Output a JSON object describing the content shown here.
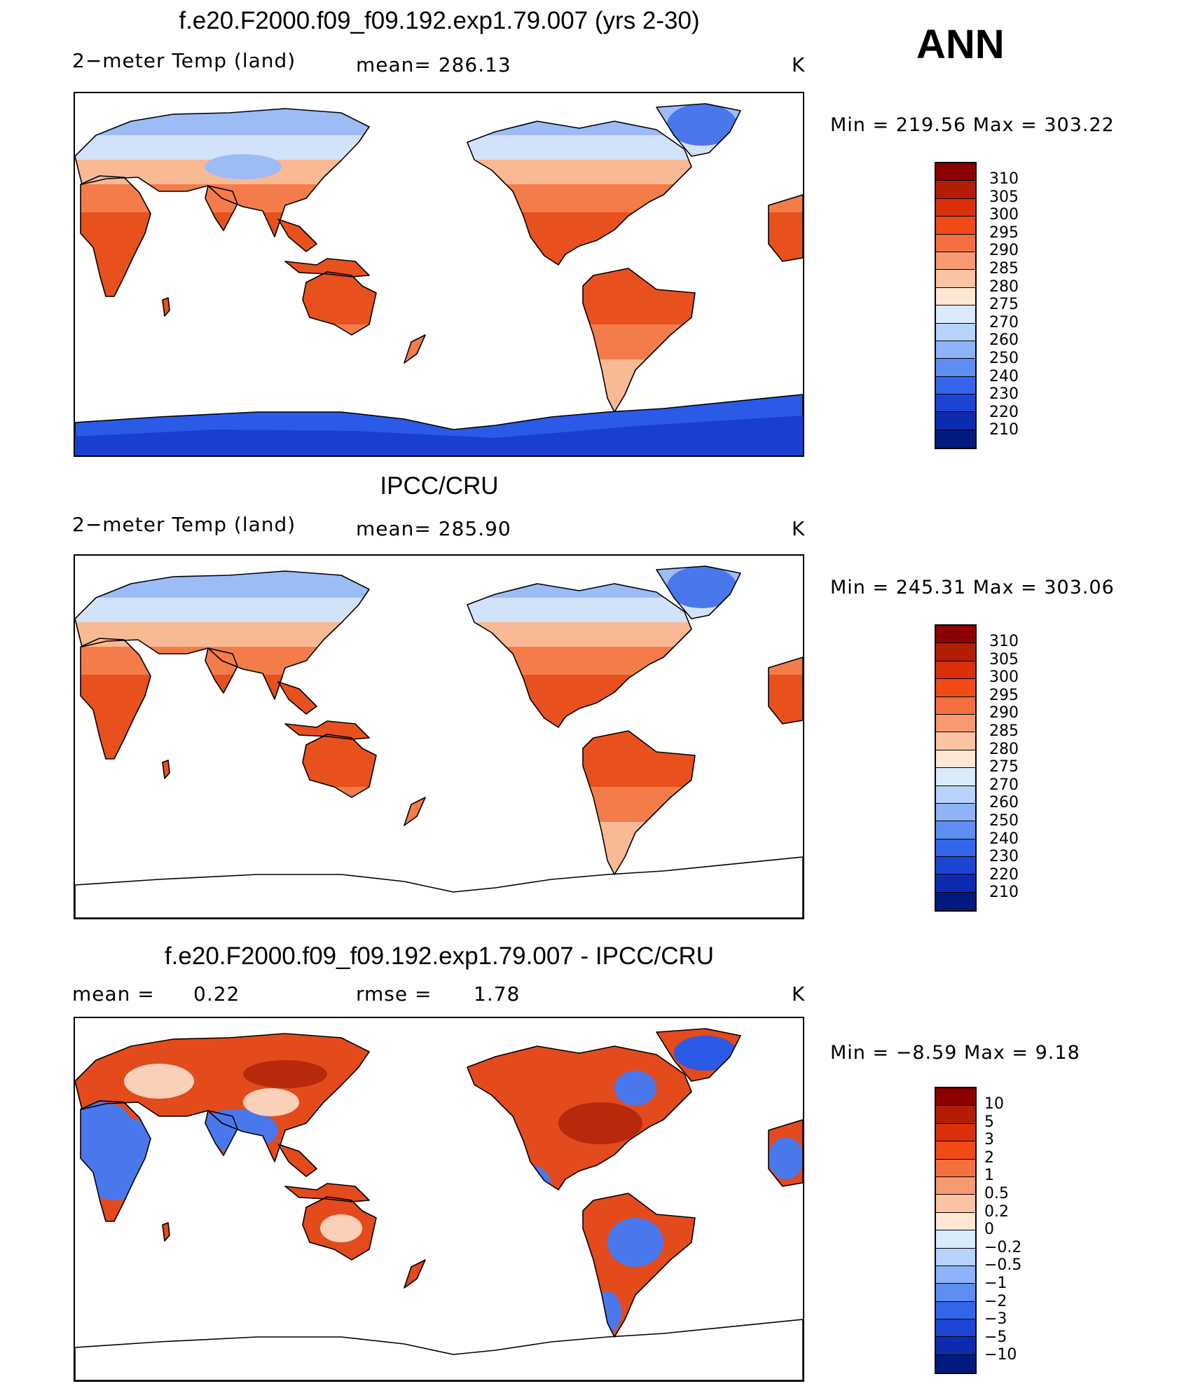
{
  "panel_label": "ANN",
  "units": "K",
  "panels": [
    {
      "title": "f.e20.F2000.f09_f09.192.exp1.79.007 (yrs 2-30)",
      "variable": "2−meter Temp (land)",
      "mean_label": "mean= 286.13",
      "minmax": "Min  =  219.56  Max  =  303.22",
      "map_name": "model-temperature-map"
    },
    {
      "title": "IPCC/CRU",
      "variable": "2−meter Temp (land)",
      "mean_label": "mean= 285.90",
      "minmax": "Min  =  245.31  Max  =  303.06",
      "map_name": "observed-temperature-map"
    },
    {
      "title": "f.e20.F2000.f09_f09.192.exp1.79.007 - IPCC/CRU",
      "mean_text": "mean  =",
      "mean_value": "0.22",
      "rmse_text": "rmse  =",
      "rmse_value": "1.78",
      "minmax": "Min  =     −8.59  Max  =      9.18",
      "map_name": "difference-map"
    }
  ],
  "colorbars": {
    "absolute": {
      "levels": [
        "310",
        "305",
        "300",
        "295",
        "290",
        "285",
        "280",
        "275",
        "270",
        "260",
        "250",
        "240",
        "230",
        "220",
        "210"
      ],
      "colors": [
        "#8b0000",
        "#b31d02",
        "#d9300a",
        "#f04a17",
        "#f4703e",
        "#f79a71",
        "#fbc3a3",
        "#fde6d3",
        "#d9eafb",
        "#b7d2fb",
        "#8fb3f8",
        "#5f8ef2",
        "#3366ea",
        "#1c45d6",
        "#0d2bae",
        "#001a80"
      ]
    },
    "difference": {
      "levels": [
        "10",
        "5",
        "3",
        "2",
        "1",
        "0.5",
        "0.2",
        "0",
        "−0.2",
        "−0.5",
        "−1",
        "−2",
        "−3",
        "−5",
        "−10"
      ],
      "colors": [
        "#8b0000",
        "#b31d02",
        "#d9300a",
        "#f04a17",
        "#f4703e",
        "#f79a71",
        "#fbc3a3",
        "#fde6d3",
        "#d9eafb",
        "#b7d2fb",
        "#8fb3f8",
        "#5f8ef2",
        "#3366ea",
        "#1c45d6",
        "#0d2bae",
        "#001a80"
      ]
    }
  },
  "map_colors": {
    "hot": "#e8501e",
    "warm": "#f47c4a",
    "mild": "#f9b995",
    "cool": "#d2e2fb",
    "cold": "#9cbcf6",
    "ice": "#2b5ae6",
    "deep_ice": "#1a3fd0",
    "neg": "#4a78ec",
    "pos": "#e34a1c",
    "pos_dark": "#b8280a",
    "neutral": "#fbd0b8"
  }
}
